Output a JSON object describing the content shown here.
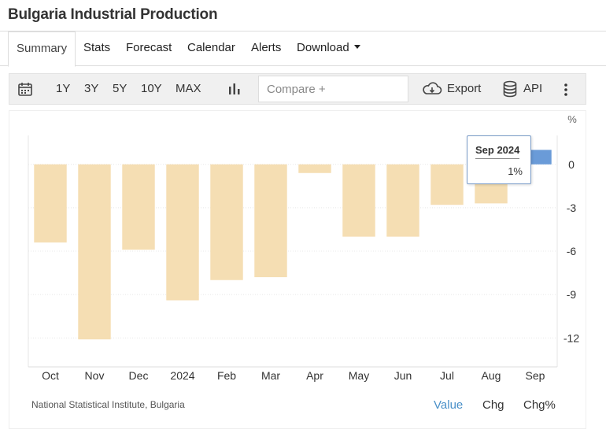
{
  "page": {
    "title": "Bulgaria Industrial Production"
  },
  "tabs": [
    {
      "label": "Summary"
    },
    {
      "label": "Stats"
    },
    {
      "label": "Forecast"
    },
    {
      "label": "Calendar"
    },
    {
      "label": "Alerts"
    },
    {
      "label": "Download"
    }
  ],
  "toolbar": {
    "ranges": [
      "1Y",
      "3Y",
      "5Y",
      "10Y",
      "MAX"
    ],
    "compare_placeholder": "Compare +",
    "export_label": "Export",
    "api_label": "API",
    "icons": [
      "calendar-icon",
      "bar-chart-icon",
      "cloud-download-icon",
      "database-icon",
      "more-vertical-icon"
    ]
  },
  "colors": {
    "negative_bar": "#f5deb3",
    "highlight_bar": "#6a9bd8",
    "accent": "#4a90c8"
  },
  "chart_data": {
    "type": "bar",
    "unit_label": "%",
    "categories": [
      "Oct",
      "Nov",
      "Dec",
      "2024",
      "Feb",
      "Mar",
      "Apr",
      "May",
      "Jun",
      "Jul",
      "Aug",
      "Sep"
    ],
    "values": [
      -5.4,
      -12.1,
      -5.9,
      -9.4,
      -8.0,
      -7.8,
      -0.6,
      -5.0,
      -5.0,
      -2.8,
      -2.7,
      1.0
    ],
    "highlighted_index": 11,
    "yticks": [
      0,
      -3,
      -6,
      -9,
      -12
    ],
    "ylim": [
      -14,
      2
    ],
    "grid": true,
    "tooltip": {
      "title": "Sep 2024",
      "value": "1%"
    }
  },
  "footer": {
    "source": "National Statistical Institute, Bulgaria",
    "modes": [
      "Value",
      "Chg",
      "Chg%"
    ],
    "active_mode": "Value"
  }
}
